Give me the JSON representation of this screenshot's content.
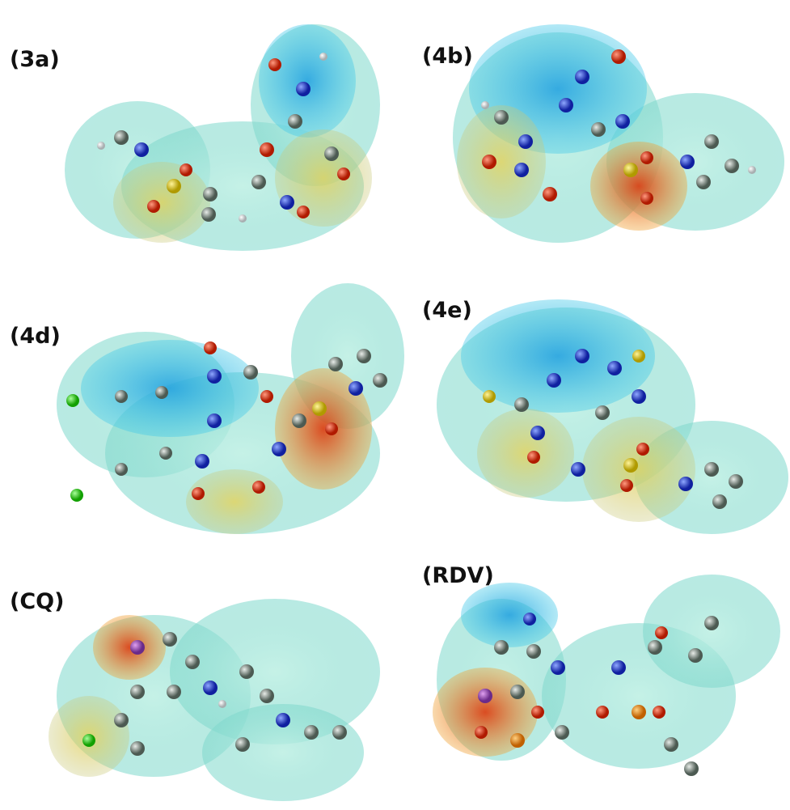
{
  "panels": [
    {
      "label": "(3a)"
    },
    {
      "label": "(4b)"
    },
    {
      "label": "(4d)"
    },
    {
      "label": "(4e)"
    },
    {
      "label": "(CQ)"
    },
    {
      "label": "(RDV)"
    }
  ]
}
